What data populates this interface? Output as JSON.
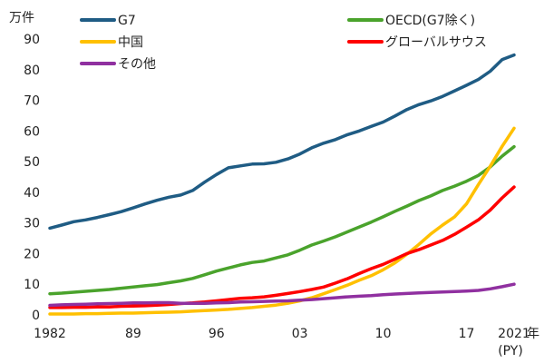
{
  "chart_data": {
    "type": "line",
    "y_unit": "万件",
    "x_suffix": "年",
    "x_note": "(PY)",
    "x_range": [
      1982,
      2021
    ],
    "ylim": [
      0,
      90
    ],
    "y_ticks": [
      0,
      10,
      20,
      30,
      40,
      50,
      60,
      70,
      80,
      90
    ],
    "x_ticks": [
      {
        "value": 1982,
        "label": "1982"
      },
      {
        "value": 1989,
        "label": "89"
      },
      {
        "value": 1996,
        "label": "96"
      },
      {
        "value": 2003,
        "label": "03"
      },
      {
        "value": 2010,
        "label": "10"
      },
      {
        "value": 2017,
        "label": "17"
      },
      {
        "value": 2021,
        "label": "2021"
      }
    ],
    "grid": false,
    "series": [
      {
        "name": "G7",
        "color": "#1f5c84",
        "x": [
          1982,
          1983,
          1984,
          1985,
          1986,
          1987,
          1988,
          1989,
          1990,
          1991,
          1992,
          1993,
          1994,
          1995,
          1996,
          1997,
          1998,
          1999,
          2000,
          2001,
          2002,
          2003,
          2004,
          2005,
          2006,
          2007,
          2008,
          2009,
          2010,
          2011,
          2012,
          2013,
          2014,
          2015,
          2016,
          2017,
          2018,
          2019,
          2020,
          2021
        ],
        "values": [
          28.3,
          29.3,
          30.4,
          31.0,
          31.8,
          32.7,
          33.7,
          34.9,
          36.2,
          37.4,
          38.4,
          39.1,
          40.6,
          43.3,
          45.8,
          48.0,
          48.6,
          49.2,
          49.3,
          49.8,
          50.9,
          52.5,
          54.5,
          56.0,
          57.2,
          58.8,
          60.0,
          61.5,
          62.9,
          64.9,
          67.0,
          68.6,
          69.8,
          71.3,
          73.1,
          74.9,
          76.8,
          79.5,
          83.3,
          84.8
        ]
      },
      {
        "name": "OECD(G7除く)",
        "color": "#4aa32c",
        "x": [
          1982,
          1983,
          1984,
          1985,
          1986,
          1987,
          1988,
          1989,
          1990,
          1991,
          1992,
          1993,
          1994,
          1995,
          1996,
          1997,
          1998,
          1999,
          2000,
          2001,
          2002,
          2003,
          2004,
          2005,
          2006,
          2007,
          2008,
          2009,
          2010,
          2011,
          2012,
          2013,
          2014,
          2015,
          2016,
          2017,
          2018,
          2019,
          2020,
          2021
        ],
        "values": [
          6.9,
          7.1,
          7.4,
          7.7,
          8.0,
          8.3,
          8.7,
          9.1,
          9.5,
          9.9,
          10.5,
          11.1,
          11.9,
          13.1,
          14.3,
          15.3,
          16.3,
          17.1,
          17.6,
          18.6,
          19.6,
          21.1,
          22.8,
          24.1,
          25.5,
          27.1,
          28.7,
          30.3,
          32.0,
          33.8,
          35.5,
          37.3,
          38.8,
          40.6,
          42.0,
          43.6,
          45.5,
          48.3,
          51.8,
          54.9
        ]
      },
      {
        "name": "中国",
        "color": "#ffc000",
        "x": [
          1982,
          1983,
          1984,
          1985,
          1986,
          1987,
          1988,
          1989,
          1990,
          1991,
          1992,
          1993,
          1994,
          1995,
          1996,
          1997,
          1998,
          1999,
          2000,
          2001,
          2002,
          2003,
          2004,
          2005,
          2006,
          2007,
          2008,
          2009,
          2010,
          2011,
          2012,
          2013,
          2014,
          2015,
          2016,
          2017,
          2018,
          2019,
          2020,
          2021
        ],
        "values": [
          0.3,
          0.3,
          0.3,
          0.4,
          0.4,
          0.5,
          0.6,
          0.6,
          0.7,
          0.8,
          0.9,
          1.0,
          1.2,
          1.4,
          1.6,
          1.8,
          2.1,
          2.4,
          2.8,
          3.2,
          3.8,
          4.6,
          5.6,
          6.9,
          8.3,
          9.7,
          11.3,
          12.8,
          14.7,
          17.0,
          19.8,
          23.0,
          26.4,
          29.3,
          32.0,
          36.2,
          42.5,
          48.5,
          55.0,
          60.9
        ]
      },
      {
        "name": "グローバルサウス",
        "color": "#ff0000",
        "x": [
          1982,
          1983,
          1984,
          1985,
          1986,
          1987,
          1988,
          1989,
          1990,
          1991,
          1992,
          1993,
          1994,
          1995,
          1996,
          1997,
          1998,
          1999,
          2000,
          2001,
          2002,
          2003,
          2004,
          2005,
          2006,
          2007,
          2008,
          2009,
          2010,
          2011,
          2012,
          2013,
          2014,
          2015,
          2016,
          2017,
          2018,
          2019,
          2020,
          2021
        ],
        "values": [
          2.4,
          2.4,
          2.5,
          2.5,
          2.6,
          2.6,
          2.8,
          2.9,
          3.0,
          3.2,
          3.4,
          3.7,
          3.9,
          4.2,
          4.6,
          5.0,
          5.4,
          5.6,
          5.9,
          6.4,
          7.0,
          7.6,
          8.3,
          9.1,
          10.4,
          11.8,
          13.5,
          15.1,
          16.5,
          18.2,
          20.0,
          21.3,
          22.8,
          24.3,
          26.3,
          28.6,
          31.0,
          34.2,
          38.2,
          41.7
        ]
      },
      {
        "name": "その他",
        "color": "#9030a0",
        "x": [
          1982,
          1983,
          1984,
          1985,
          1986,
          1987,
          1988,
          1989,
          1990,
          1991,
          1992,
          1993,
          1994,
          1995,
          1996,
          1997,
          1998,
          1999,
          2000,
          2001,
          2002,
          2003,
          2004,
          2005,
          2006,
          2007,
          2008,
          2009,
          2010,
          2011,
          2012,
          2013,
          2014,
          2015,
          2016,
          2017,
          2018,
          2019,
          2020,
          2021
        ],
        "values": [
          3.1,
          3.3,
          3.4,
          3.5,
          3.6,
          3.7,
          3.8,
          3.9,
          3.9,
          4.0,
          4.0,
          3.8,
          3.8,
          3.8,
          3.9,
          4.0,
          4.2,
          4.3,
          4.4,
          4.5,
          4.6,
          4.8,
          5.0,
          5.3,
          5.6,
          5.9,
          6.1,
          6.3,
          6.6,
          6.8,
          7.0,
          7.2,
          7.3,
          7.5,
          7.6,
          7.8,
          8.0,
          8.5,
          9.2,
          10.0
        ]
      }
    ],
    "legend": {
      "placement": "top",
      "items": [
        "G7",
        "OECD(G7除く)",
        "中国",
        "グローバルサウス",
        "その他"
      ]
    }
  }
}
